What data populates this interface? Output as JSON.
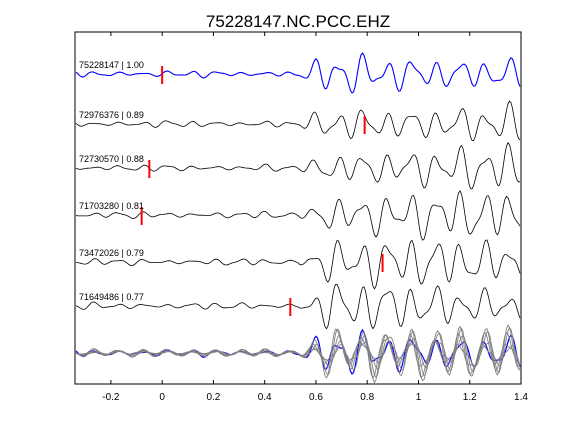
{
  "chart_data": {
    "type": "line",
    "title": "75228147.NC.PCC.EHZ",
    "xlabel": "",
    "ylabel": "",
    "xlim": [
      -0.34,
      1.4
    ],
    "xticks": [
      -0.2,
      0,
      0.2,
      0.4,
      0.6,
      0.8,
      1,
      1.2,
      1.4
    ],
    "xtick_labels": [
      "-0.2",
      "0",
      "0.2",
      "0.4",
      "0.6",
      "0.8",
      "1",
      "1.2",
      "1.4"
    ],
    "grid": false,
    "colors": {
      "reference": "#0000ff",
      "trace": "#000000",
      "stack_gray": "#808080",
      "pick": "#ff0000"
    },
    "series": [
      {
        "name": "75228147 | 1.00",
        "pick": 0.0,
        "reference": true
      },
      {
        "name": "72976376 | 0.89",
        "pick": 0.79,
        "reference": false
      },
      {
        "name": "72730570 | 0.88",
        "pick": -0.05,
        "reference": false
      },
      {
        "name": "71703280 | 0.81",
        "pick": -0.08,
        "reference": false
      },
      {
        "name": "73472026 | 0.79",
        "pick": 0.86,
        "reference": false
      },
      {
        "name": "71649486 | 0.77",
        "pick": 0.5,
        "reference": false
      }
    ]
  }
}
